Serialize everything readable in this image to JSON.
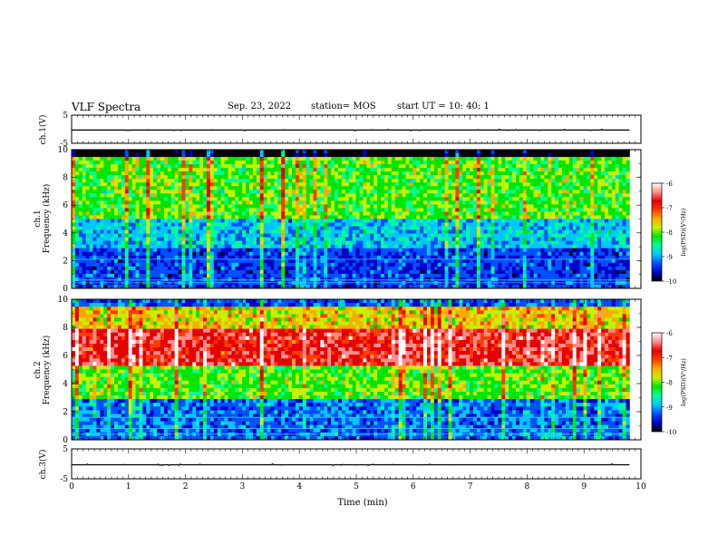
{
  "header": {
    "title": "VLF Spectra",
    "date": "Sep. 23, 2022",
    "station": "station= MOS",
    "start": "start  UT =   10: 40: 1"
  },
  "colorbar": {
    "label": "log(PSD)(V²/Hz)",
    "ticks": [
      "-6",
      "-7",
      "-8",
      "-9",
      "-10"
    ],
    "range": [
      -10,
      -6
    ],
    "colors": [
      "#000000",
      "#0000c8",
      "#0050ff",
      "#00c8ff",
      "#00ff96",
      "#00e600",
      "#c8f000",
      "#ffaa00",
      "#ff3c00",
      "#e60000",
      "#ff8c8c",
      "#ffffff"
    ]
  },
  "chart_data": [
    {
      "type": "line",
      "panel": "ch1-voltage",
      "ylabel": "ch.1(V)",
      "ylim": [
        -5,
        5
      ],
      "yticks": [
        "5",
        "-5"
      ],
      "xlim": [
        0,
        10
      ],
      "series": [
        {
          "x": [
            0,
            9.8
          ],
          "y": [
            0,
            0
          ]
        }
      ]
    },
    {
      "type": "heatmap",
      "panel": "ch1-spectrogram",
      "ylabel": "ch.1\nFrequency (kHz)",
      "ylim": [
        0,
        10
      ],
      "yticks": [
        "0",
        "2",
        "4",
        "6",
        "8",
        "10"
      ],
      "xlim": [
        0,
        10
      ],
      "data_xrange": [
        0,
        9.8
      ],
      "value_range": [
        -10,
        -6
      ],
      "description_levels": {
        "band_high_khz": [
          5,
          9.5
        ],
        "lines_khz": [
          0.4,
          0.6,
          2.1
        ]
      }
    },
    {
      "type": "heatmap",
      "panel": "ch2-spectrogram",
      "ylabel": "ch.2\nFrequency (kHz)",
      "ylim": [
        0,
        10
      ],
      "yticks": [
        "0",
        "2",
        "4",
        "6",
        "8",
        "10"
      ],
      "xlim": [
        0,
        10
      ],
      "data_xrange": [
        0,
        9.8
      ],
      "value_range": [
        -10,
        -6
      ],
      "description_levels": {
        "band_peak_khz": [
          5.5,
          8
        ],
        "lines_khz": [
          0.4,
          0.8,
          1.6
        ]
      }
    },
    {
      "type": "line",
      "panel": "ch3-voltage",
      "ylabel": "ch.3(V)",
      "ylim": [
        -5,
        5
      ],
      "yticks": [
        "5",
        "-5"
      ],
      "xlim": [
        0,
        10
      ],
      "xlabel": "Time (min)",
      "xticks": [
        "0",
        "1",
        "2",
        "3",
        "4",
        "5",
        "6",
        "7",
        "8",
        "9",
        "10"
      ],
      "series": [
        {
          "x": [
            0,
            9.8
          ],
          "y": [
            0,
            0
          ]
        }
      ]
    }
  ]
}
